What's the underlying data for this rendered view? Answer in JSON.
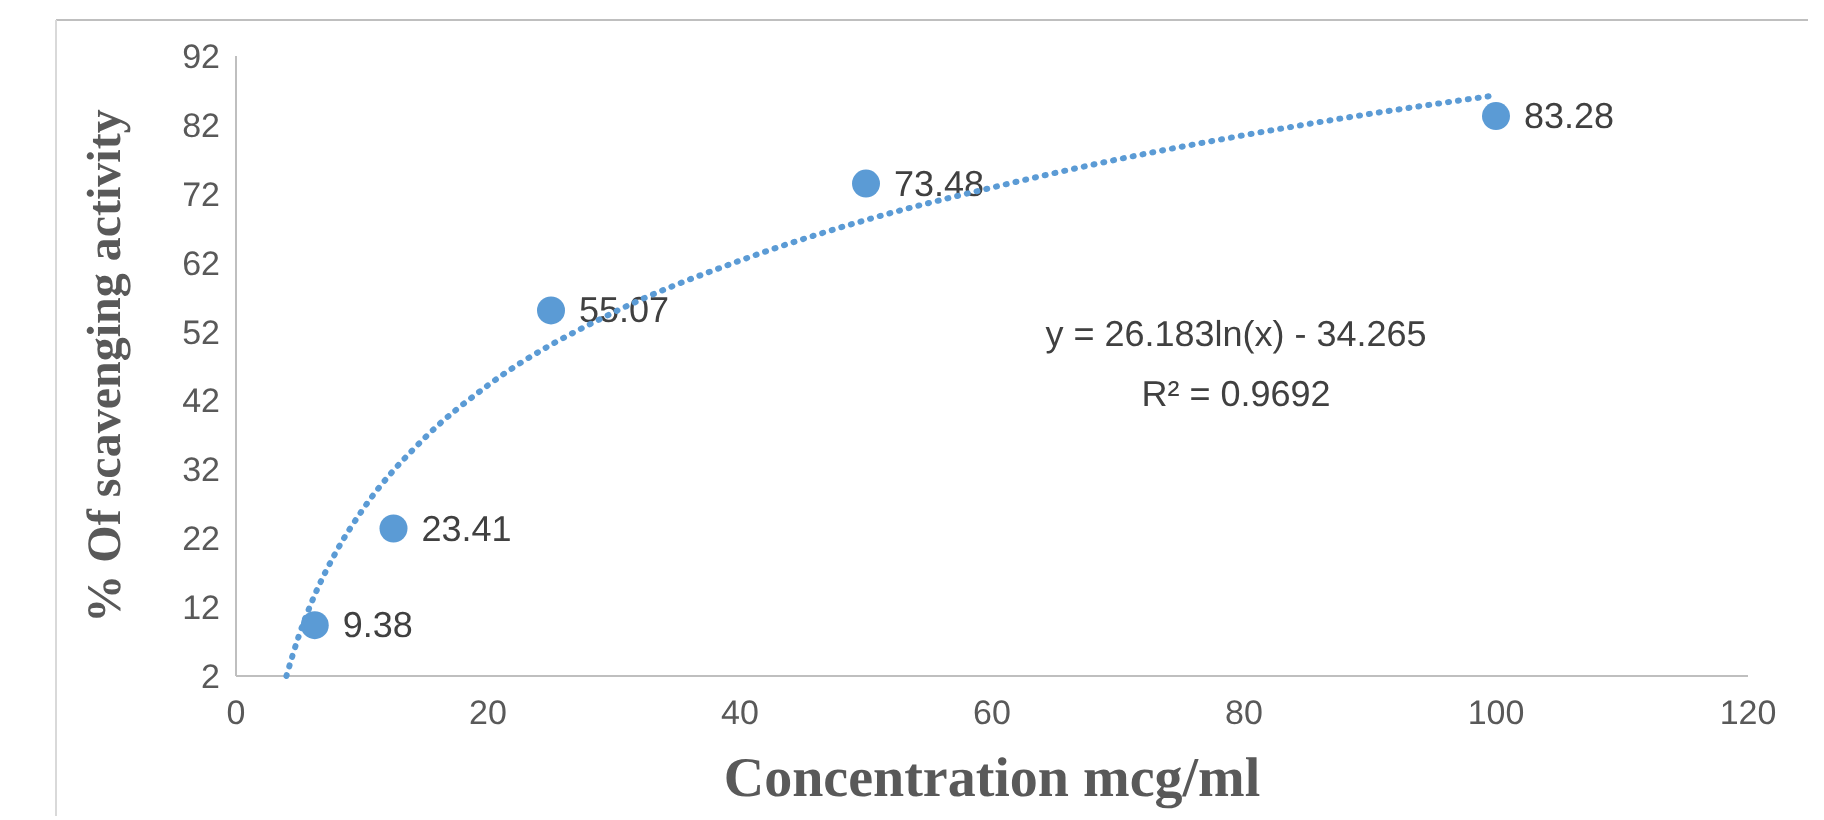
{
  "chart_data": {
    "type": "scatter",
    "xlabel": "Concentration mcg/ml",
    "ylabel": "% Of scavenging activity",
    "x": [
      6.25,
      12.5,
      25,
      50,
      100
    ],
    "xlim": [
      0,
      120
    ],
    "xticks": [
      0,
      20,
      40,
      60,
      80,
      100,
      120
    ],
    "ylim": [
      2,
      92
    ],
    "yticks": [
      2,
      12,
      22,
      32,
      42,
      52,
      62,
      72,
      82,
      92
    ],
    "grid": false,
    "marker": "circle",
    "series": [
      {
        "color": "#5b9bd5",
        "values": [
          9.38,
          23.41,
          55.07,
          73.48,
          83.28
        ],
        "value_labels": [
          "9.38",
          "23.41",
          "55.07",
          "73.48",
          "83.28"
        ]
      },
      {
        "type": "line",
        "color": "#5b9bd5",
        "line_style": "dotted",
        "marker": "none",
        "x": [
          4,
          5,
          6,
          8,
          10,
          15,
          20,
          30,
          40,
          50,
          60,
          70,
          80,
          90,
          100
        ],
        "values": [
          2,
          7.9,
          12.7,
          20.2,
          26,
          36.6,
          44.2,
          54.8,
          62.3,
          68.2,
          72.9,
          77,
          80.5,
          83.6,
          86.3
        ]
      }
    ],
    "annotations": [
      "y = 26.183ln(x) - 34.265",
      "R² = 0.9692"
    ]
  }
}
